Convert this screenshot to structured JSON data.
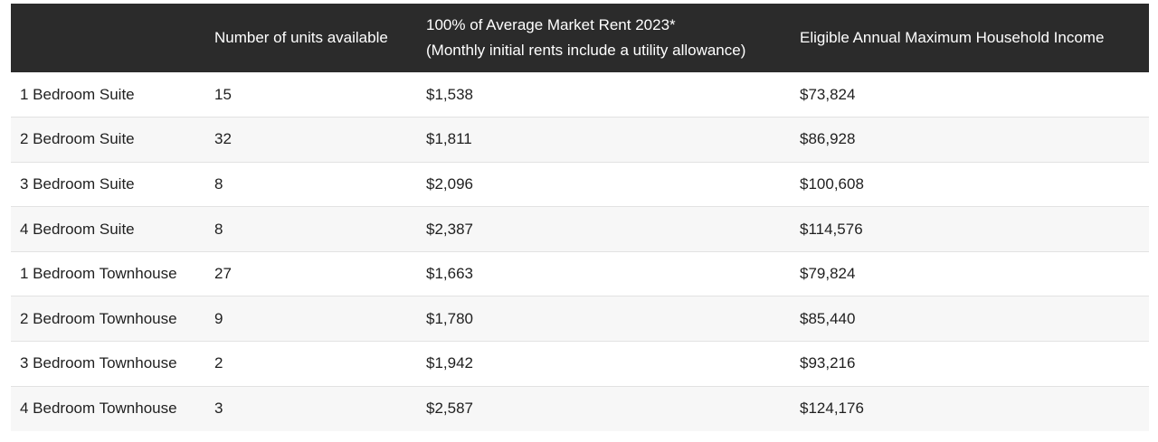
{
  "table": {
    "headers": {
      "type": "",
      "units": "Number of units available",
      "rent_line1": "100% of Average Market Rent 2023*",
      "rent_line2": "(Monthly initial rents include a utility allowance)",
      "income": "Eligible Annual Maximum Household Income"
    },
    "rows": [
      {
        "type": "1 Bedroom Suite",
        "units": "15",
        "rent": "$1,538",
        "income": "$73,824"
      },
      {
        "type": "2 Bedroom Suite",
        "units": "32",
        "rent": "$1,811",
        "income": "$86,928"
      },
      {
        "type": "3 Bedroom Suite",
        "units": "8",
        "rent": "$2,096",
        "income": "$100,608"
      },
      {
        "type": "4 Bedroom Suite",
        "units": "8",
        "rent": "$2,387",
        "income": "$114,576"
      },
      {
        "type": "1 Bedroom Townhouse",
        "units": "27",
        "rent": "$1,663",
        "income": "$79,824"
      },
      {
        "type": "2 Bedroom Townhouse",
        "units": "9",
        "rent": "$1,780",
        "income": "$85,440"
      },
      {
        "type": "3 Bedroom Townhouse",
        "units": "2",
        "rent": "$1,942",
        "income": "$93,216"
      },
      {
        "type": "4 Bedroom Townhouse",
        "units": "3",
        "rent": "$2,587",
        "income": "$124,176"
      }
    ]
  }
}
